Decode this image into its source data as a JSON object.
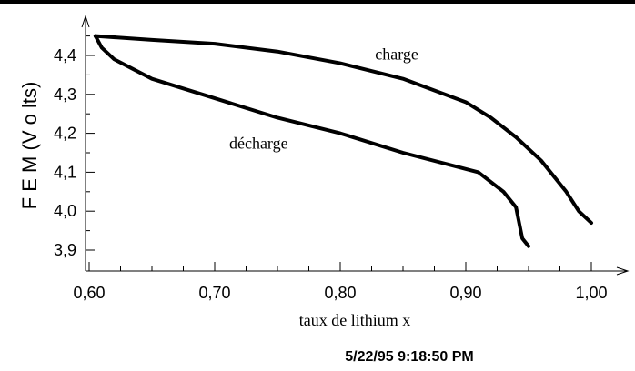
{
  "chart_data": {
    "type": "line",
    "xlabel": "taux de lithium x",
    "ylabel": "F E M  (V o lts)",
    "xlim": [
      0.6,
      1.0
    ],
    "ylim": [
      3.9,
      4.45
    ],
    "xticks": [
      "0,60",
      "0,70",
      "0,80",
      "0,90",
      "1,00"
    ],
    "yticks": [
      "3,9",
      "4,0",
      "4,1",
      "4,2",
      "4,3",
      "4,4"
    ],
    "grid": false,
    "series": [
      {
        "name": "charge",
        "x": [
          0.605,
          0.65,
          0.7,
          0.75,
          0.8,
          0.85,
          0.9,
          0.92,
          0.94,
          0.96,
          0.98,
          0.99,
          1.0
        ],
        "y": [
          4.45,
          4.44,
          4.43,
          4.41,
          4.38,
          4.34,
          4.28,
          4.24,
          4.19,
          4.13,
          4.05,
          4.0,
          3.97
        ]
      },
      {
        "name": "décharge",
        "x": [
          0.605,
          0.61,
          0.62,
          0.65,
          0.7,
          0.75,
          0.8,
          0.85,
          0.91,
          0.93,
          0.94,
          0.945,
          0.95
        ],
        "y": [
          4.45,
          4.42,
          4.39,
          4.34,
          4.29,
          4.24,
          4.2,
          4.15,
          4.1,
          4.05,
          4.01,
          3.93,
          3.91
        ]
      }
    ],
    "annotations": [
      {
        "text": "charge",
        "x": 0.845,
        "y": 4.39
      },
      {
        "text": "décharge",
        "x": 0.735,
        "y": 4.16
      }
    ]
  },
  "timestamp": "5/22/95  9:18:50 PM"
}
